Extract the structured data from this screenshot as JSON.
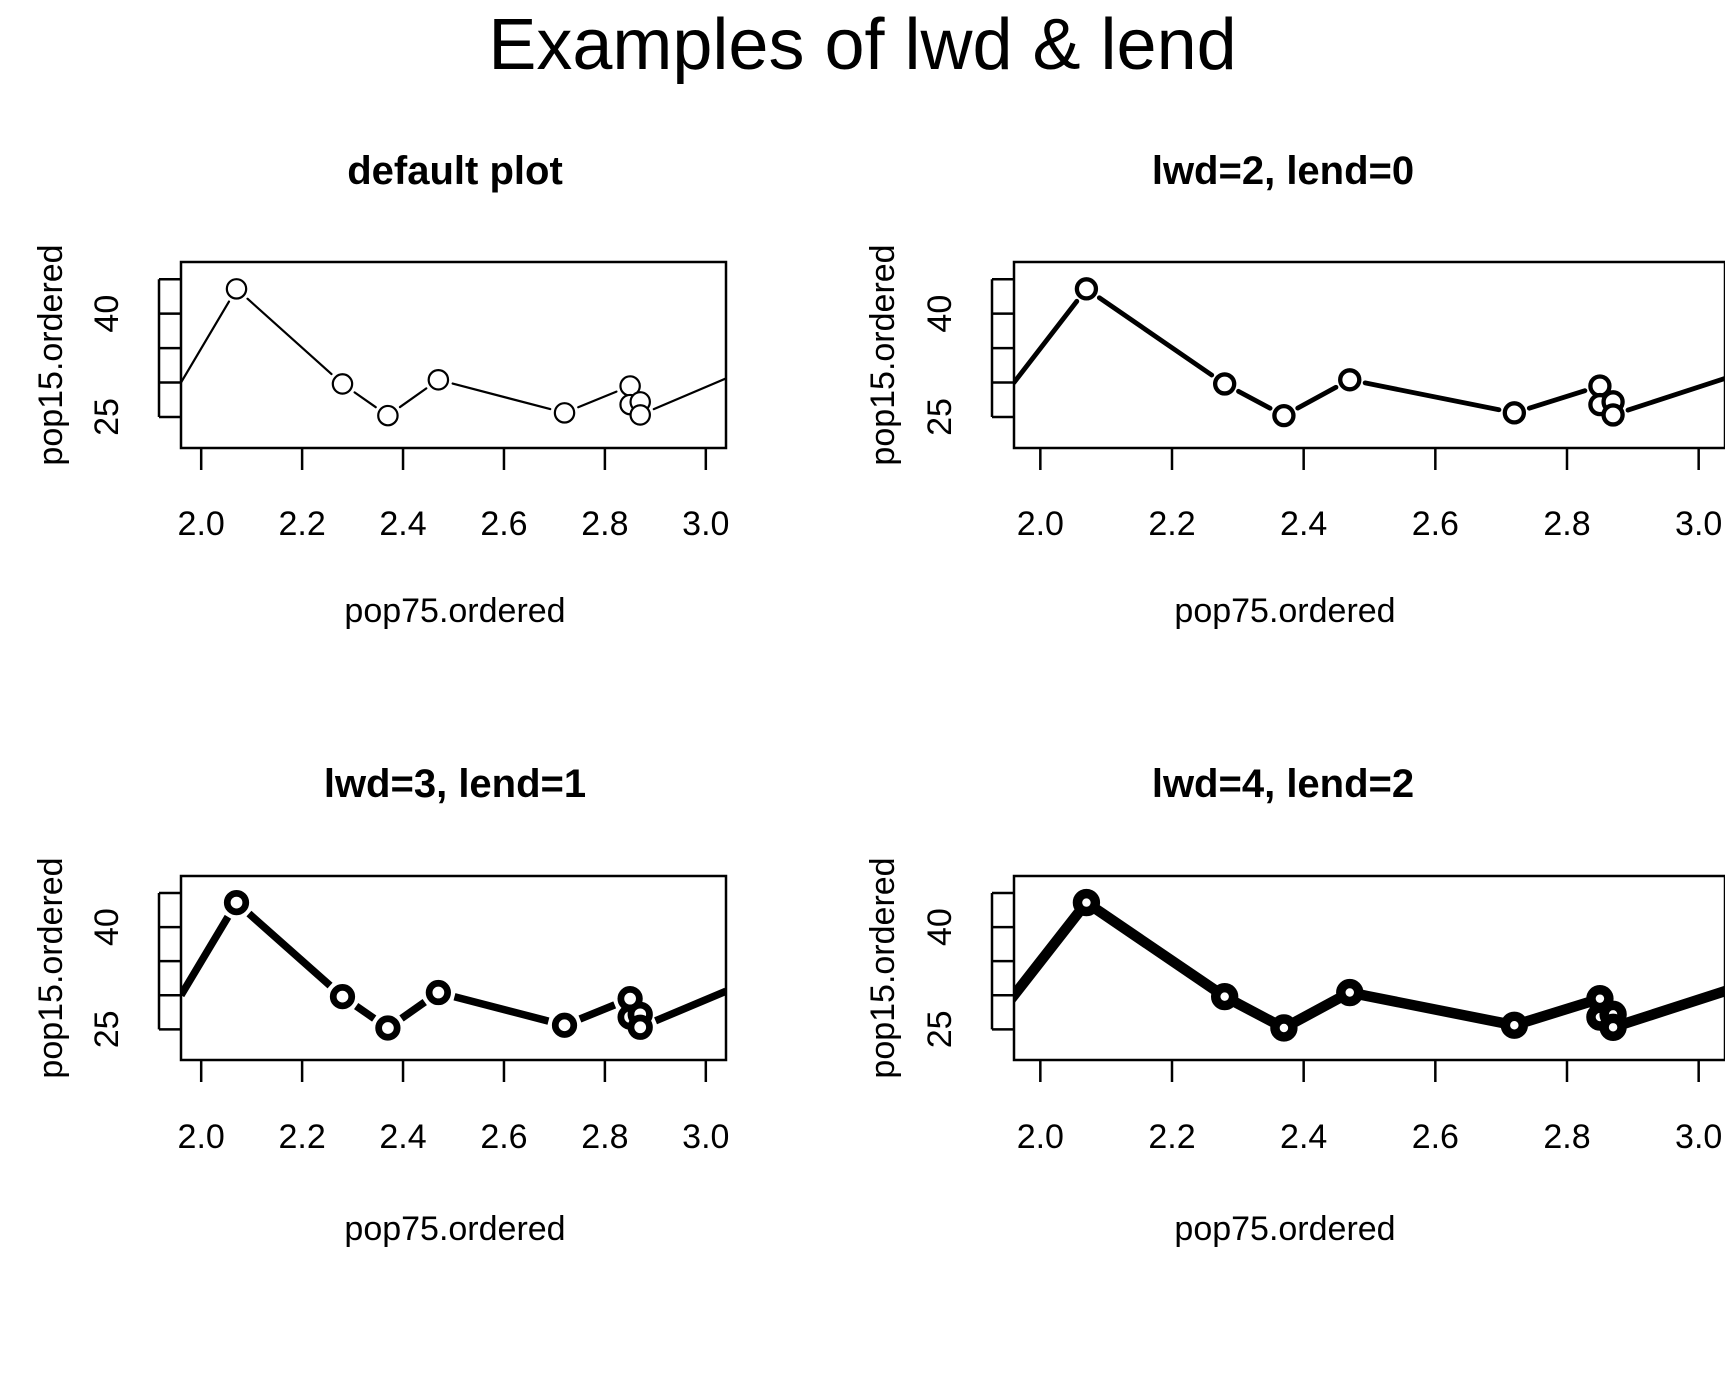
{
  "title": "Examples of lwd & lend",
  "chart_data": [
    {
      "type": "line",
      "title": "default plot",
      "xlabel": "pop75.ordered",
      "ylabel": "pop15.ordered",
      "xlim": [
        1.96,
        3.04
      ],
      "ylim": [
        20.5,
        47.5
      ],
      "x_ticks": [
        "2.0",
        "2.2",
        "2.4",
        "2.6",
        "2.8",
        "3.0"
      ],
      "y_tick_labels": [
        "25",
        "40"
      ],
      "line_width": 1,
      "line_end": "round",
      "x": [
        1.96,
        2.07,
        2.28,
        2.37,
        2.47,
        2.72,
        2.85,
        2.85,
        2.87,
        2.87,
        3.04
      ],
      "y": [
        30.0,
        43.6,
        29.8,
        25.2,
        30.4,
        25.6,
        29.5,
        26.8,
        27.2,
        25.3,
        30.6
      ],
      "point_style": "open-circle"
    },
    {
      "type": "line",
      "title": "lwd=2, lend=0",
      "xlabel": "pop75.ordered",
      "ylabel": "pop15.ordered",
      "xlim": [
        1.96,
        3.04
      ],
      "ylim": [
        20.5,
        47.5
      ],
      "x_ticks": [
        "2.0",
        "2.2",
        "2.4",
        "2.6",
        "2.8",
        "3.0"
      ],
      "y_tick_labels": [
        "25",
        "40"
      ],
      "line_width": 2,
      "line_end": "round",
      "x": [
        1.96,
        2.07,
        2.28,
        2.37,
        2.47,
        2.72,
        2.85,
        2.85,
        2.87,
        2.87,
        3.04
      ],
      "y": [
        30.0,
        43.6,
        29.8,
        25.2,
        30.4,
        25.6,
        29.5,
        26.8,
        27.2,
        25.3,
        30.6
      ],
      "point_style": "open-circle"
    },
    {
      "type": "line",
      "title": "lwd=3, lend=1",
      "xlabel": "pop75.ordered",
      "ylabel": "pop15.ordered",
      "xlim": [
        1.96,
        3.04
      ],
      "ylim": [
        20.5,
        47.5
      ],
      "x_ticks": [
        "2.0",
        "2.2",
        "2.4",
        "2.6",
        "2.8",
        "3.0"
      ],
      "y_tick_labels": [
        "25",
        "40"
      ],
      "line_width": 3,
      "line_end": "butt",
      "x": [
        1.96,
        2.07,
        2.28,
        2.37,
        2.47,
        2.72,
        2.85,
        2.85,
        2.87,
        2.87,
        3.04
      ],
      "y": [
        30.0,
        43.6,
        29.8,
        25.2,
        30.4,
        25.6,
        29.5,
        26.8,
        27.2,
        25.3,
        30.6
      ],
      "point_style": "open-circle"
    },
    {
      "type": "line",
      "title": "lwd=4, lend=2",
      "xlabel": "pop75.ordered",
      "ylabel": "pop15.ordered",
      "xlim": [
        1.96,
        3.04
      ],
      "ylim": [
        20.5,
        47.5
      ],
      "x_ticks": [
        "2.0",
        "2.2",
        "2.4",
        "2.6",
        "2.8",
        "3.0"
      ],
      "y_tick_labels": [
        "25",
        "40"
      ],
      "line_width": 4,
      "line_end": "square",
      "x": [
        1.96,
        2.07,
        2.28,
        2.37,
        2.47,
        2.72,
        2.85,
        2.85,
        2.87,
        2.87,
        3.04
      ],
      "y": [
        30.0,
        43.6,
        29.8,
        25.2,
        30.4,
        25.6,
        29.5,
        26.8,
        27.2,
        25.3,
        30.6
      ],
      "point_style": "open-circle"
    }
  ]
}
